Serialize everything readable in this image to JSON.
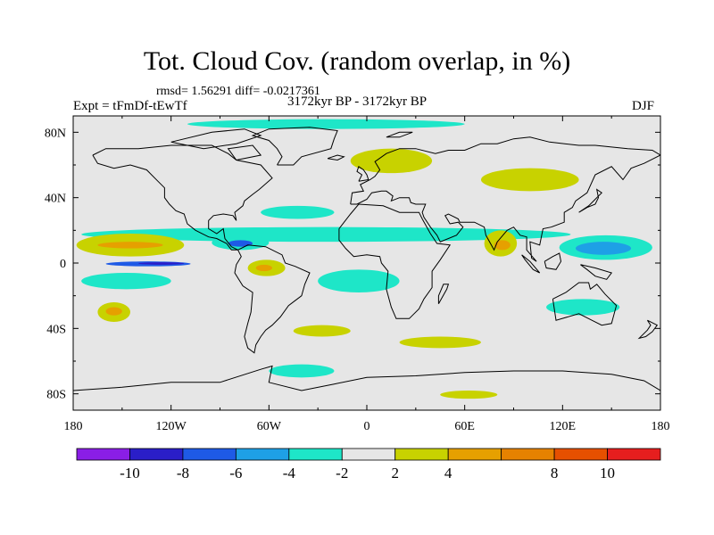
{
  "title": "Tot. Cloud Cov. (random overlap, in %)",
  "stats": "rmsd= 1.56291 diff= -0.0217361",
  "experiment": "Expt = tFmDf-tEwTf",
  "period": "3172kyr BP - 3172kyr BP",
  "season": "DJF",
  "map": {
    "projection": "cylindrical equidistant",
    "lon_range": [
      -180,
      180
    ],
    "lat_range": [
      -90,
      90
    ],
    "x_tick_labels": [
      {
        "lon": -180,
        "label": "180"
      },
      {
        "lon": -120,
        "label": "120W"
      },
      {
        "lon": -60,
        "label": "60W"
      },
      {
        "lon": 0,
        "label": "0"
      },
      {
        "lon": 60,
        "label": "60E"
      },
      {
        "lon": 120,
        "label": "120E"
      },
      {
        "lon": 180,
        "label": "180"
      }
    ],
    "y_tick_labels": [
      {
        "lat": 80,
        "label": "80N"
      },
      {
        "lat": 40,
        "label": "40N"
      },
      {
        "lat": 0,
        "label": "0"
      },
      {
        "lat": -40,
        "label": "40S"
      },
      {
        "lat": -80,
        "label": "80S"
      }
    ],
    "background_color": "#e6e6e6",
    "coastline_color": "#000000"
  },
  "colorbar": {
    "boundaries": [
      -12,
      -10,
      -8,
      -6,
      -4,
      -2,
      2,
      4,
      6,
      8,
      10,
      12
    ],
    "labels": [
      {
        "value": -10,
        "label": "-10"
      },
      {
        "value": -8,
        "label": "-8"
      },
      {
        "value": -6,
        "label": "-6"
      },
      {
        "value": -4,
        "label": "-4"
      },
      {
        "value": -2,
        "label": "-2"
      },
      {
        "value": 2,
        "label": "2"
      },
      {
        "value": 4,
        "label": "4"
      },
      {
        "value": 8,
        "label": "8"
      },
      {
        "value": 10,
        "label": "10"
      }
    ],
    "colors": [
      "#8a1ee6",
      "#2a1ec8",
      "#1e5ae6",
      "#1ea0e6",
      "#1ee6c8",
      "#e6e6e6",
      "#c8d200",
      "#e6a000",
      "#e68200",
      "#e65000",
      "#e61e1e"
    ]
  },
  "anomaly_regions": [
    {
      "name": "north-pacific-cyan",
      "class": -3,
      "lon": [
        -175,
        125
      ],
      "lat": [
        13,
        22
      ]
    },
    {
      "name": "central-pacific-yellow",
      "class": 3,
      "lon": [
        -178,
        -112
      ],
      "lat": [
        4,
        18
      ]
    },
    {
      "name": "central-pacific-orange",
      "class": 5,
      "lon": [
        -165,
        -125
      ],
      "lat": [
        9,
        13
      ]
    },
    {
      "name": "equatorial-pacific-blue",
      "class": -7,
      "lon": [
        -160,
        -108
      ],
      "lat": [
        -2,
        1
      ]
    },
    {
      "name": "equatorial-pacific-dark",
      "class": -9,
      "lon": [
        -140,
        -112
      ],
      "lat": [
        -1,
        0.5
      ]
    },
    {
      "name": "south-pacific-cyan",
      "class": -3,
      "lon": [
        -175,
        -120
      ],
      "lat": [
        -16,
        -6
      ]
    },
    {
      "name": "south-pacific-yellow",
      "class": 3,
      "lon": [
        -165,
        -145
      ],
      "lat": [
        -36,
        -24
      ]
    },
    {
      "name": "south-pacific-orange",
      "class": 5,
      "lon": [
        -160,
        -150
      ],
      "lat": [
        -32,
        -27
      ]
    },
    {
      "name": "caribbean-cyan",
      "class": -3,
      "lon": [
        -95,
        -60
      ],
      "lat": [
        8,
        17
      ]
    },
    {
      "name": "caribbean-blue",
      "class": -7,
      "lon": [
        -85,
        -70
      ],
      "lat": [
        10,
        14
      ]
    },
    {
      "name": "south-america-yellow",
      "class": 3,
      "lon": [
        -73,
        -50
      ],
      "lat": [
        -8,
        2
      ]
    },
    {
      "name": "south-america-orange",
      "class": 5,
      "lon": [
        -68,
        -58
      ],
      "lat": [
        -5,
        -1
      ]
    },
    {
      "name": "atlantic-cyan",
      "class": -3,
      "lon": [
        -30,
        20
      ],
      "lat": [
        -18,
        -4
      ]
    },
    {
      "name": "north-atlantic-cyan",
      "class": -3,
      "lon": [
        -65,
        -20
      ],
      "lat": [
        27,
        35
      ]
    },
    {
      "name": "west-pacific-cyan",
      "class": -3,
      "lon": [
        118,
        175
      ],
      "lat": [
        2,
        17
      ]
    },
    {
      "name": "west-pacific-blue",
      "class": -5,
      "lon": [
        128,
        162
      ],
      "lat": [
        5,
        13
      ]
    },
    {
      "name": "india-yellow",
      "class": 3,
      "lon": [
        72,
        92
      ],
      "lat": [
        4,
        20
      ]
    },
    {
      "name": "india-orange",
      "class": 5,
      "lon": [
        78,
        88
      ],
      "lat": [
        8,
        14
      ]
    },
    {
      "name": "siberia-yellow",
      "class": 3,
      "lon": [
        70,
        130
      ],
      "lat": [
        44,
        58
      ]
    },
    {
      "name": "europe-yellow",
      "class": 3,
      "lon": [
        -10,
        40
      ],
      "lat": [
        55,
        70
      ]
    },
    {
      "name": "arctic-cyan",
      "class": -3,
      "lon": [
        -110,
        60
      ],
      "lat": [
        82,
        88
      ]
    },
    {
      "name": "antarctic-yellow",
      "class": 3,
      "lon": [
        45,
        80
      ],
      "lat": [
        -83,
        -78
      ]
    },
    {
      "name": "south-indian-cyan",
      "class": -3,
      "lon": [
        110,
        155
      ],
      "lat": [
        -32,
        -22
      ]
    },
    {
      "name": "south-indian-yellow",
      "class": 3,
      "lon": [
        20,
        70
      ],
      "lat": [
        -52,
        -45
      ]
    },
    {
      "name": "south-atlantic-yellow",
      "class": 3,
      "lon": [
        -45,
        -10
      ],
      "lat": [
        -45,
        -38
      ]
    },
    {
      "name": "southern-ocean-cyan",
      "class": -3,
      "lon": [
        -60,
        -20
      ],
      "lat": [
        -70,
        -62
      ]
    }
  ]
}
